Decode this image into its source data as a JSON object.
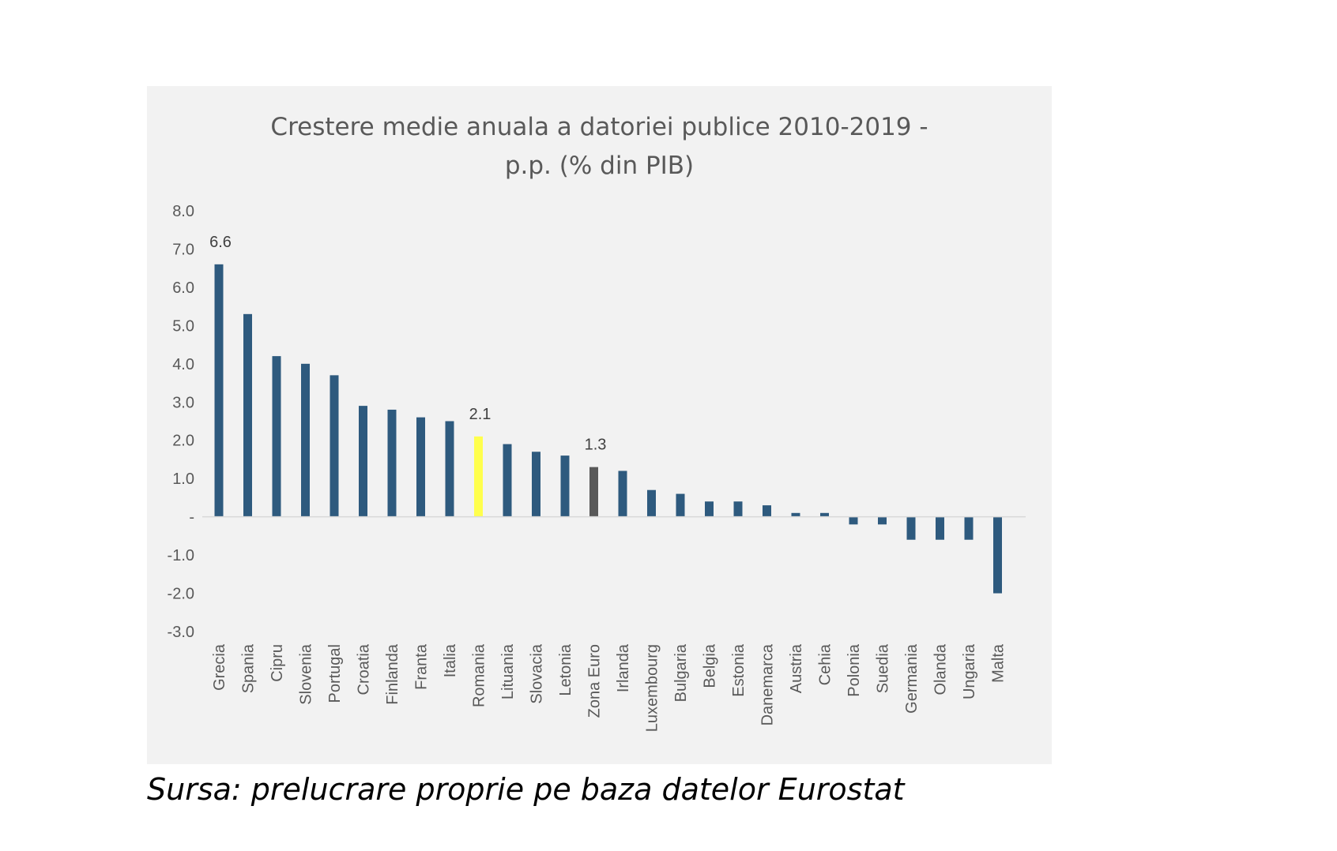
{
  "chart_data": {
    "type": "bar",
    "title_line1": "Crestere medie anuala a datoriei publice 2010-2019 -",
    "title_line2": "p.p. (% din PIB)",
    "categories": [
      "Grecia",
      "Spania",
      "Cipru",
      "Slovenia",
      "Portugal",
      "Croatia",
      "Finlanda",
      "Franta",
      "Italia",
      "Romania",
      "Lituania",
      "Slovacia",
      "Letonia",
      "Zona Euro",
      "Irlanda",
      "Luxembourg",
      "Bulgaria",
      "Belgia",
      "Estonia",
      "Danemarca",
      "Austria",
      "Cehia",
      "Polonia",
      "Suedia",
      "Germania",
      "Olanda",
      "Ungaria",
      "Malta"
    ],
    "values": [
      6.6,
      5.3,
      4.2,
      4.0,
      3.7,
      2.9,
      2.8,
      2.6,
      2.5,
      2.1,
      1.9,
      1.7,
      1.6,
      1.3,
      1.2,
      0.7,
      0.6,
      0.4,
      0.4,
      0.3,
      0.1,
      0.1,
      -0.2,
      -0.2,
      -0.6,
      -0.6,
      -0.6,
      -2.0
    ],
    "bar_colors": [
      "#2e5a7e",
      "#2e5a7e",
      "#2e5a7e",
      "#2e5a7e",
      "#2e5a7e",
      "#2e5a7e",
      "#2e5a7e",
      "#2e5a7e",
      "#2e5a7e",
      "#ffff4d",
      "#2e5a7e",
      "#2e5a7e",
      "#2e5a7e",
      "#595959",
      "#2e5a7e",
      "#2e5a7e",
      "#2e5a7e",
      "#2e5a7e",
      "#2e5a7e",
      "#2e5a7e",
      "#2e5a7e",
      "#2e5a7e",
      "#2e5a7e",
      "#2e5a7e",
      "#2e5a7e",
      "#2e5a7e",
      "#2e5a7e",
      "#2e5a7e"
    ],
    "data_labels": [
      {
        "category": "Grecia",
        "text": "6.6"
      },
      {
        "category": "Romania",
        "text": "2.1"
      },
      {
        "category": "Zona Euro",
        "text": "1.3"
      }
    ],
    "y_ticks": [
      {
        "value": 8,
        "label": "8.0"
      },
      {
        "value": 7,
        "label": "7.0"
      },
      {
        "value": 6,
        "label": "6.0"
      },
      {
        "value": 5,
        "label": "5.0"
      },
      {
        "value": 4,
        "label": "4.0"
      },
      {
        "value": 3,
        "label": "3.0"
      },
      {
        "value": 2,
        "label": "2.0"
      },
      {
        "value": 1,
        "label": "1.0"
      },
      {
        "value": 0,
        "label": "-"
      },
      {
        "value": -1,
        "label": "-1.0"
      },
      {
        "value": -2,
        "label": "-2.0"
      },
      {
        "value": -3,
        "label": "-3.0"
      }
    ],
    "ylim": [
      -3,
      8
    ],
    "grid": false,
    "legend": "none"
  },
  "source": "Sursa: prelucrare proprie pe baza datelor Eurostat"
}
